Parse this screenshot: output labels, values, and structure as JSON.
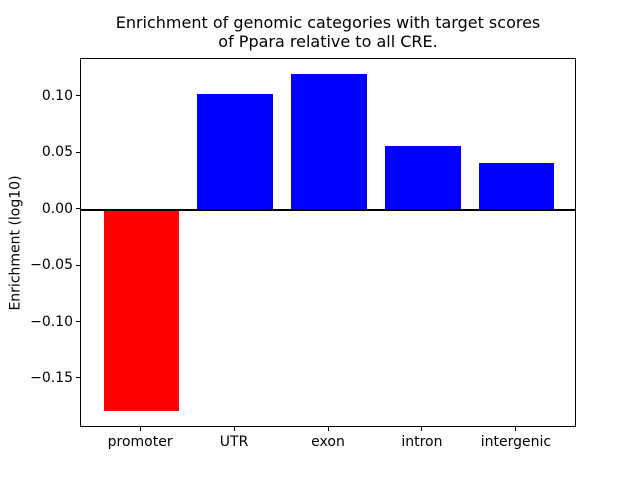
{
  "figure": {
    "background": "#ffffff",
    "border_color": "#000000"
  },
  "chart_data": {
    "type": "bar",
    "title": "Enrichment of genomic categories with target scores\nof Ppara relative to all CRE.",
    "xlabel": "",
    "ylabel": "Enrichment (log10)",
    "categories": [
      "promoter",
      "UTR",
      "exon",
      "intron",
      "intergenic"
    ],
    "values": [
      -0.178,
      0.102,
      0.12,
      0.056,
      0.041
    ],
    "bar_colors": [
      "#ff0000",
      "#0000ff",
      "#0000ff",
      "#0000ff",
      "#0000ff"
    ],
    "bar_width": 0.8,
    "xlim": [
      -0.64,
      4.64
    ],
    "ylim": [
      -0.1934,
      0.1334
    ],
    "yticks": [
      0.1,
      0.05,
      0.0,
      -0.05,
      -0.1,
      -0.15
    ],
    "ytick_labels": [
      "0.10",
      "0.05",
      "0.00",
      "−0.05",
      "−0.10",
      "−0.15"
    ],
    "zero_line": true,
    "grid": false,
    "legend": null
  }
}
